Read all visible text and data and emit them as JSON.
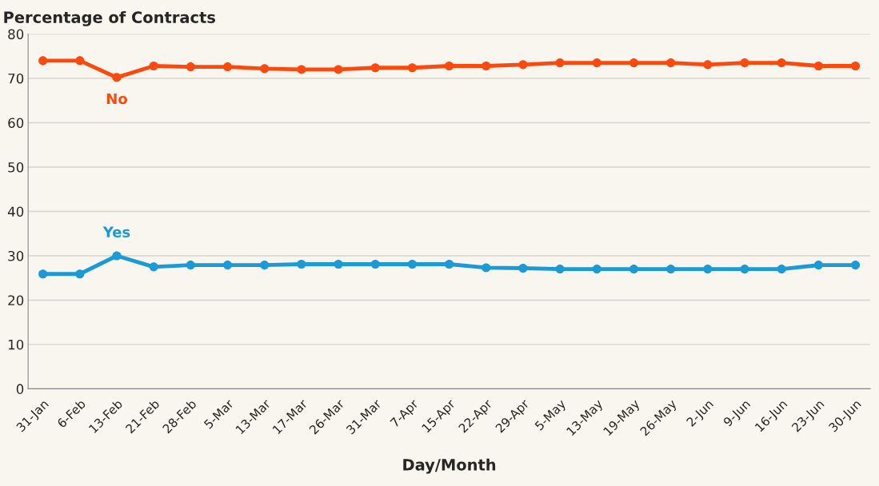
{
  "chart_data": {
    "type": "line",
    "title": "Percentage of Contracts",
    "xlabel": "Day/Month",
    "categories": [
      "31-Jan",
      "6-Feb",
      "13-Feb",
      "21-Feb",
      "28-Feb",
      "5-Mar",
      "13-Mar",
      "17-Mar",
      "26-Mar",
      "31-Mar",
      "7-Apr",
      "15-Apr",
      "22-Apr",
      "29-Apr",
      "5-May",
      "13-May",
      "19-May",
      "26-May",
      "2-Jun",
      "9-Jun",
      "16-Jun",
      "23-Jun",
      "30-Jun"
    ],
    "series": [
      {
        "name": "No",
        "color": "#fc4a0f",
        "values": [
          74.0,
          74.0,
          70.2,
          72.8,
          72.6,
          72.6,
          72.2,
          72.0,
          72.0,
          72.4,
          72.4,
          72.8,
          72.8,
          73.1,
          73.5,
          73.5,
          73.5,
          73.5,
          73.1,
          73.5,
          73.5,
          72.8,
          72.8
        ]
      },
      {
        "name": "Yes",
        "color": "#1b9ad6",
        "values": [
          25.9,
          25.9,
          30.0,
          27.5,
          27.9,
          27.9,
          27.9,
          28.1,
          28.1,
          28.1,
          28.1,
          28.1,
          27.3,
          27.2,
          27.0,
          27.0,
          27.0,
          27.0,
          27.0,
          27.0,
          27.0,
          27.9,
          27.9
        ]
      }
    ],
    "ylim": [
      0,
      80
    ],
    "yticks": [
      0,
      10,
      20,
      30,
      40,
      50,
      60,
      70,
      80
    ],
    "grid": "y",
    "legend": false,
    "marker": "circle",
    "line_style": "solid"
  }
}
